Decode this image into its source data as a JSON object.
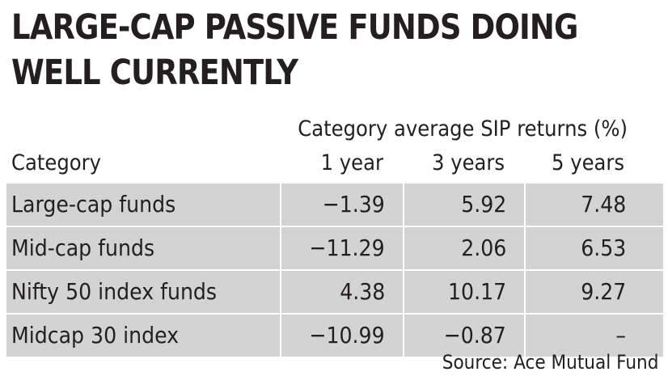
{
  "chart_data": {
    "type": "table",
    "title": [
      "LARGE-CAP PASSIVE FUNDS DOING",
      "WELL CURRENTLY"
    ],
    "supheader": "Category average SIP returns (%)",
    "category_header": "Category",
    "columns": [
      "1 year",
      "3 years",
      "5 years"
    ],
    "rows": [
      {
        "category": "Large-cap funds",
        "values": [
          "−1.39",
          "5.92",
          "7.48"
        ]
      },
      {
        "category": "Mid-cap funds",
        "values": [
          "−11.29",
          "2.06",
          "6.53"
        ]
      },
      {
        "category": "Nifty 50 index funds",
        "values": [
          "4.38",
          "10.17",
          "9.27"
        ]
      },
      {
        "category": "Midcap 30 index",
        "values": [
          "−10.99",
          "−0.87",
          "–"
        ]
      }
    ],
    "source": "Source: Ace Mutual Fund"
  },
  "colors": {
    "text": "#231f20",
    "row_background": "#d3d3d3",
    "divider": "#ffffff"
  }
}
